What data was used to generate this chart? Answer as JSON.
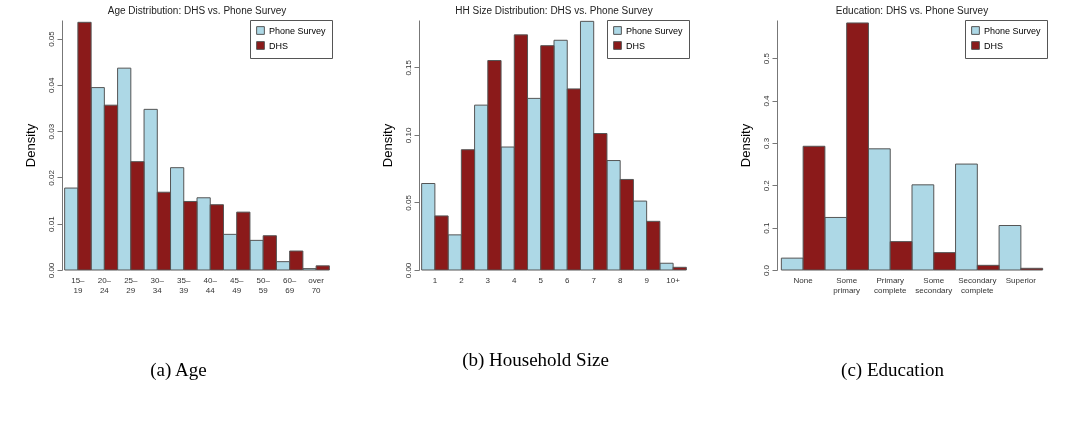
{
  "chart_data": [
    {
      "type": "bar",
      "title": "Age Distribution: DHS vs. Phone Survey",
      "ylabel": "Density",
      "annotations": [
        "(a) Age"
      ],
      "categories": [
        "15–\n19",
        "20–\n24",
        "25–\n29",
        "30–\n34",
        "35–\n39",
        "40–\n44",
        "45–\n49",
        "50–\n59",
        "60–\n69",
        "over\n70"
      ],
      "series": [
        {
          "name": "Phone Survey",
          "color": "#add8e6",
          "values": [
            0.0177,
            0.0394,
            0.0436,
            0.0347,
            0.0221,
            0.0156,
            0.0077,
            0.0064,
            0.0018,
            0.0003
          ]
        },
        {
          "name": "DHS",
          "color": "#8b1a1a",
          "values": [
            0.0535,
            0.0356,
            0.0234,
            0.0168,
            0.0148,
            0.0141,
            0.0125,
            0.0074,
            0.0041,
            0.0009
          ]
        }
      ],
      "ylim": [
        0,
        0.054
      ],
      "yticks": [
        {
          "value": 0,
          "label": "0.00"
        },
        {
          "value": 0.01,
          "label": "0.01"
        },
        {
          "value": 0.02,
          "label": "0.02"
        },
        {
          "value": 0.03,
          "label": "0.03"
        },
        {
          "value": 0.04,
          "label": "0.04"
        },
        {
          "value": 0.05,
          "label": "0.05"
        }
      ],
      "legend": "top right"
    },
    {
      "type": "bar",
      "title": "HH Size Distribution: DHS vs. Phone Survey",
      "ylabel": "Density",
      "annotations": [
        "(b) Household Size"
      ],
      "categories": [
        "1",
        "2",
        "3",
        "4",
        "5",
        "6",
        "7",
        "8",
        "9",
        "10+"
      ],
      "series": [
        {
          "name": "Phone Survey",
          "color": "#add8e6",
          "values": [
            0.064,
            0.026,
            0.122,
            0.091,
            0.127,
            0.17,
            0.184,
            0.081,
            0.051,
            0.005
          ]
        },
        {
          "name": "DHS",
          "color": "#8b1a1a",
          "values": [
            0.04,
            0.089,
            0.155,
            0.174,
            0.166,
            0.134,
            0.101,
            0.067,
            0.036,
            0.002
          ]
        }
      ],
      "ylim": [
        0,
        0.185
      ],
      "yticks": [
        {
          "value": 0,
          "label": "0.00"
        },
        {
          "value": 0.05,
          "label": "0.05"
        },
        {
          "value": 0.1,
          "label": "0.10"
        },
        {
          "value": 0.15,
          "label": "0.15"
        }
      ],
      "legend": "top right"
    },
    {
      "type": "bar",
      "title": "Education: DHS vs. Phone Survey",
      "ylabel": "Density",
      "annotations": [
        "(c) Education"
      ],
      "categories": [
        "None",
        "Some\nprimary",
        "Primary\ncomplete",
        "Some\nsecondary",
        "Secondary\ncomplete",
        "Superior"
      ],
      "series": [
        {
          "name": "Phone Survey",
          "color": "#add8e6",
          "values": [
            0.028,
            0.124,
            0.286,
            0.201,
            0.25,
            0.105
          ]
        },
        {
          "name": "DHS",
          "color": "#8b1a1a",
          "values": [
            0.292,
            0.583,
            0.067,
            0.041,
            0.011,
            0.004
          ]
        }
      ],
      "ylim": [
        0,
        0.59
      ],
      "yticks": [
        {
          "value": 0,
          "label": "0.0"
        },
        {
          "value": 0.1,
          "label": "0.1"
        },
        {
          "value": 0.2,
          "label": "0.2"
        },
        {
          "value": 0.3,
          "label": "0.3"
        },
        {
          "value": 0.4,
          "label": "0.4"
        },
        {
          "value": 0.5,
          "label": "0.5"
        }
      ],
      "legend": "top right"
    }
  ]
}
